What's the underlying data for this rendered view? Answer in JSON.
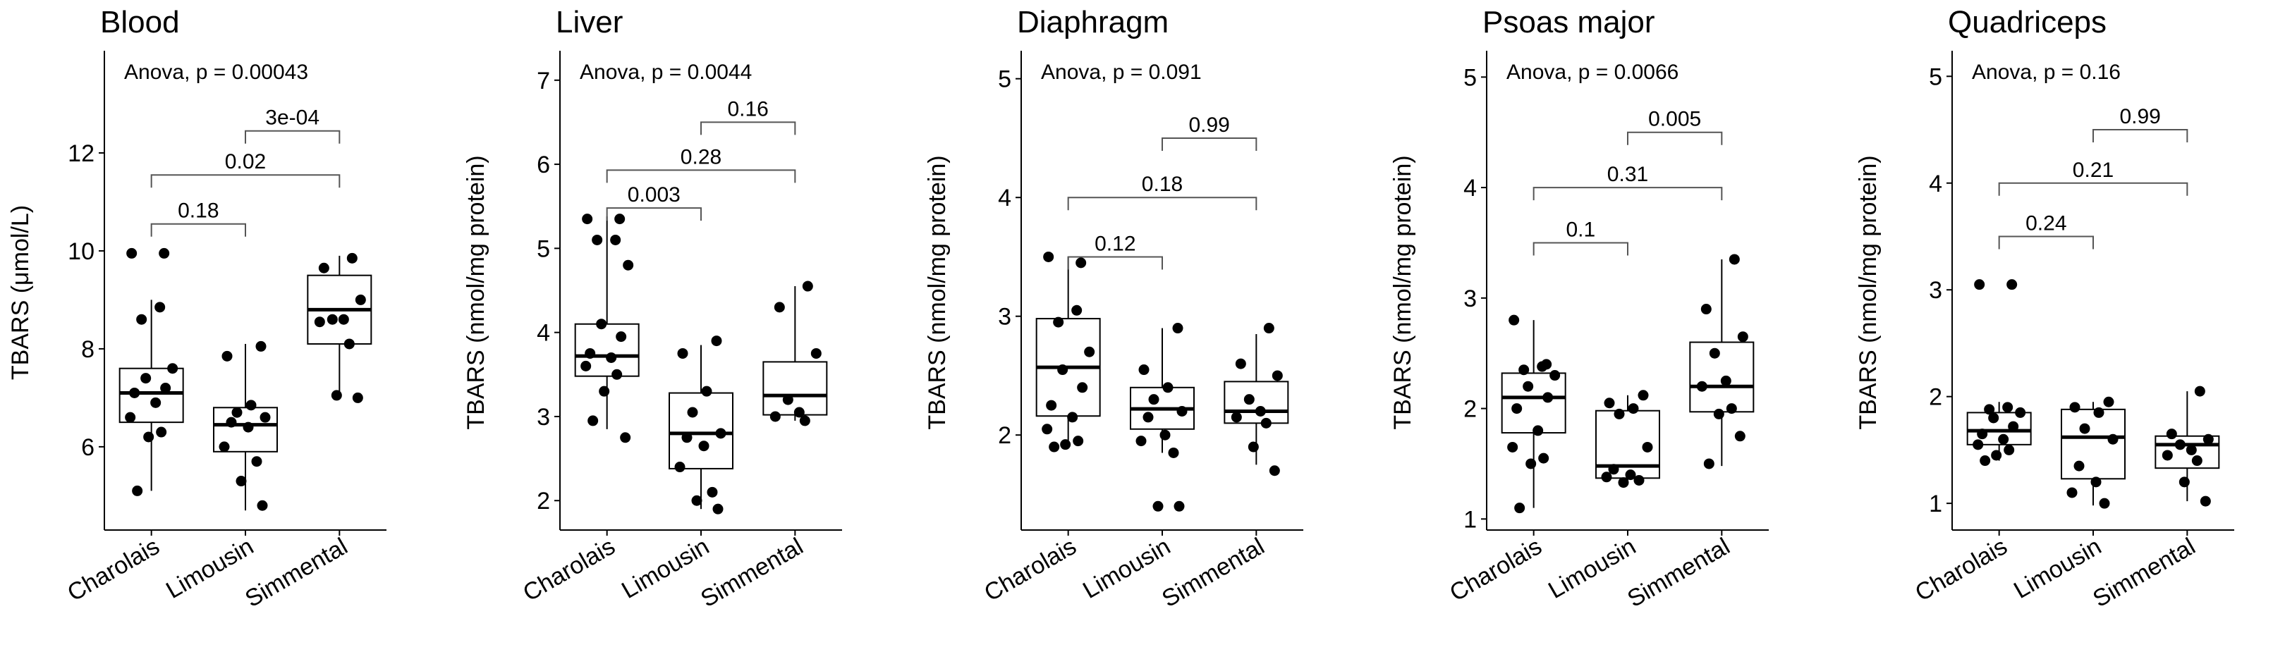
{
  "chart_data": [
    {
      "type": "boxplot",
      "title": "Blood",
      "ylabel": "TBARS (μmol/L)",
      "categories": [
        "Charolais",
        "Limousin",
        "Simmental"
      ],
      "ylim": [
        4.3,
        14.0
      ],
      "yticks": [
        6,
        8,
        10,
        12
      ],
      "anova": "Anova, p = 0.00043",
      "boxes": [
        {
          "min": 5.1,
          "q1": 6.5,
          "median": 7.1,
          "q3": 7.6,
          "max": 9.0
        },
        {
          "min": 4.7,
          "q1": 5.9,
          "median": 6.45,
          "q3": 6.8,
          "max": 8.1
        },
        {
          "min": 7.0,
          "q1": 8.1,
          "median": 8.8,
          "q3": 9.5,
          "max": 9.9
        }
      ],
      "points": [
        [
          9.95,
          9.95,
          8.85,
          8.6,
          7.6,
          7.4,
          7.2,
          7.1,
          6.9,
          6.6,
          6.3,
          6.2,
          5.1
        ],
        [
          8.05,
          7.85,
          6.85,
          6.7,
          6.6,
          6.5,
          6.4,
          6.0,
          5.7,
          5.3,
          4.8
        ],
        [
          9.85,
          9.65,
          9.0,
          8.6,
          8.6,
          8.55,
          8.1,
          7.05,
          7.0
        ]
      ],
      "comparisons": [
        {
          "pair": [
            1,
            2
          ],
          "label": "0.18",
          "y": 10.55
        },
        {
          "pair": [
            1,
            3
          ],
          "label": "0.02",
          "y": 11.55
        },
        {
          "pair": [
            2,
            3
          ],
          "label": "3e-04",
          "y": 12.45
        }
      ]
    },
    {
      "type": "boxplot",
      "title": "Liver",
      "ylabel": "TBARS (nmol/mg protein)",
      "categories": [
        "Charolais",
        "Limousin",
        "Simmental"
      ],
      "ylim": [
        1.65,
        7.3
      ],
      "yticks": [
        2,
        3,
        4,
        5,
        6,
        7
      ],
      "anova": "Anova, p = 0.0044",
      "boxes": [
        {
          "min": 2.85,
          "q1": 3.48,
          "median": 3.72,
          "q3": 4.1,
          "max": 5.38
        },
        {
          "min": 1.9,
          "q1": 2.38,
          "median": 2.8,
          "q3": 3.28,
          "max": 3.85
        },
        {
          "min": 2.95,
          "q1": 3.02,
          "median": 3.25,
          "q3": 3.65,
          "max": 4.55
        }
      ],
      "points": [
        [
          5.35,
          5.35,
          5.1,
          5.1,
          4.8,
          4.1,
          3.95,
          3.75,
          3.7,
          3.6,
          3.5,
          3.3,
          2.95,
          2.75
        ],
        [
          3.9,
          3.75,
          3.3,
          3.05,
          2.8,
          2.75,
          2.65,
          2.4,
          2.1,
          2.0,
          1.9
        ],
        [
          4.55,
          4.3,
          3.75,
          3.2,
          3.05,
          3.0,
          2.95
        ]
      ],
      "comparisons": [
        {
          "pair": [
            1,
            2
          ],
          "label": "0.003",
          "y": 5.48
        },
        {
          "pair": [
            1,
            3
          ],
          "label": "0.28",
          "y": 5.93
        },
        {
          "pair": [
            2,
            3
          ],
          "label": "0.16",
          "y": 6.5
        }
      ]
    },
    {
      "type": "boxplot",
      "title": "Diaphragm",
      "ylabel": "TBARS (nmol/mg protein)",
      "categories": [
        "Charolais",
        "Limousin",
        "Simmental"
      ],
      "ylim": [
        1.2,
        5.2
      ],
      "yticks": [
        2,
        3,
        4,
        5
      ],
      "anova": "Anova, p = 0.091",
      "boxes": [
        {
          "min": 1.9,
          "q1": 2.16,
          "median": 2.57,
          "q3": 2.98,
          "max": 3.5
        },
        {
          "min": 1.85,
          "q1": 2.05,
          "median": 2.22,
          "q3": 2.4,
          "max": 2.9
        },
        {
          "min": 1.75,
          "q1": 2.1,
          "median": 2.2,
          "q3": 2.45,
          "max": 2.85
        }
      ],
      "points": [
        [
          3.5,
          3.45,
          3.05,
          2.95,
          2.7,
          2.55,
          2.4,
          2.25,
          2.15,
          2.05,
          1.95,
          1.92,
          1.9
        ],
        [
          2.9,
          2.55,
          2.4,
          2.3,
          2.2,
          2.15,
          2.0,
          1.95,
          1.85,
          1.4,
          1.4
        ],
        [
          2.9,
          2.6,
          2.5,
          2.3,
          2.2,
          2.15,
          2.1,
          1.9,
          1.7
        ]
      ],
      "comparisons": [
        {
          "pair": [
            1,
            2
          ],
          "label": "0.12",
          "y": 3.5
        },
        {
          "pair": [
            1,
            3
          ],
          "label": "0.18",
          "y": 4.0
        },
        {
          "pair": [
            2,
            3
          ],
          "label": "0.99",
          "y": 4.5
        }
      ]
    },
    {
      "type": "boxplot",
      "title": "Psoas major",
      "ylabel": "TBARS (nmol/mg protein)",
      "categories": [
        "Charolais",
        "Limousin",
        "Simmental"
      ],
      "ylim": [
        0.9,
        5.2
      ],
      "yticks": [
        1,
        2,
        3,
        4,
        5
      ],
      "anova": "Anova, p = 0.0066",
      "boxes": [
        {
          "min": 1.1,
          "q1": 1.78,
          "median": 2.1,
          "q3": 2.32,
          "max": 2.8
        },
        {
          "min": 1.33,
          "q1": 1.37,
          "median": 1.48,
          "q3": 1.98,
          "max": 2.12
        },
        {
          "min": 1.48,
          "q1": 1.97,
          "median": 2.2,
          "q3": 2.6,
          "max": 3.35
        }
      ],
      "points": [
        [
          2.8,
          2.4,
          2.38,
          2.35,
          2.3,
          2.2,
          2.1,
          2.0,
          1.8,
          1.65,
          1.55,
          1.5,
          1.1
        ],
        [
          2.12,
          2.05,
          2.0,
          1.95,
          1.65,
          1.45,
          1.4,
          1.38,
          1.35,
          1.33
        ],
        [
          3.35,
          2.9,
          2.65,
          2.5,
          2.25,
          2.2,
          2.0,
          1.95,
          1.75,
          1.5
        ]
      ],
      "comparisons": [
        {
          "pair": [
            1,
            2
          ],
          "label": "0.1",
          "y": 3.5
        },
        {
          "pair": [
            1,
            3
          ],
          "label": "0.31",
          "y": 4.0
        },
        {
          "pair": [
            2,
            3
          ],
          "label": "0.005",
          "y": 4.5
        }
      ]
    },
    {
      "type": "boxplot",
      "title": "Quadriceps",
      "ylabel": "TBARS (nmol/mg protein)",
      "categories": [
        "Charolais",
        "Limousin",
        "Simmental"
      ],
      "ylim": [
        0.75,
        5.2
      ],
      "yticks": [
        1,
        2,
        3,
        4,
        5
      ],
      "anova": "Anova, p = 0.16",
      "boxes": [
        {
          "min": 1.4,
          "q1": 1.55,
          "median": 1.68,
          "q3": 1.85,
          "max": 1.95
        },
        {
          "min": 0.98,
          "q1": 1.23,
          "median": 1.62,
          "q3": 1.88,
          "max": 1.95
        },
        {
          "min": 1.02,
          "q1": 1.33,
          "median": 1.55,
          "q3": 1.63,
          "max": 2.05
        }
      ],
      "points": [
        [
          3.05,
          3.05,
          1.9,
          1.88,
          1.85,
          1.8,
          1.72,
          1.65,
          1.6,
          1.55,
          1.5,
          1.45,
          1.4
        ],
        [
          1.95,
          1.9,
          1.85,
          1.7,
          1.6,
          1.35,
          1.2,
          1.1,
          1.0
        ],
        [
          2.05,
          1.65,
          1.6,
          1.55,
          1.5,
          1.45,
          1.4,
          1.2,
          1.02
        ]
      ],
      "comparisons": [
        {
          "pair": [
            1,
            2
          ],
          "label": "0.24",
          "y": 3.5
        },
        {
          "pair": [
            1,
            3
          ],
          "label": "0.21",
          "y": 4.0
        },
        {
          "pair": [
            2,
            3
          ],
          "label": "0.99",
          "y": 4.5
        }
      ]
    }
  ]
}
